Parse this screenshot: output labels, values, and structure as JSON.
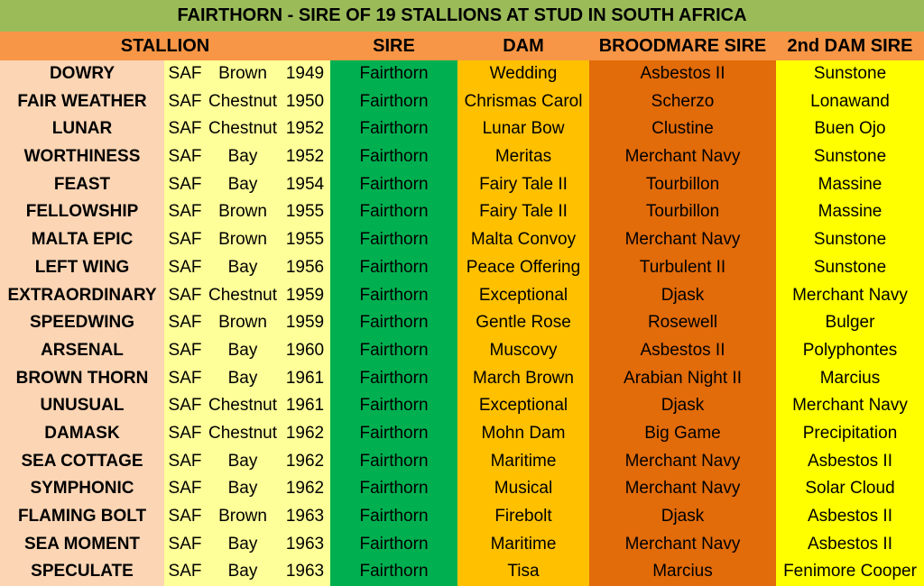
{
  "title": "FAIRTHORN - SIRE OF 19 STALLIONS AT STUD IN SOUTH AFRICA",
  "headers": {
    "stallion": "STALLION",
    "sire": "SIRE",
    "dam": "DAM",
    "broodmare_sire": "BROODMARE SIRE",
    "second_dam_sire": "2nd DAM SIRE"
  },
  "colors": {
    "title_bg": "#9bbb59",
    "header_bg": "#f79646",
    "stallion_bg": "#fcd5b4",
    "details_bg": "#ffff99",
    "sire_bg": "#00b050",
    "dam_bg": "#ffc000",
    "broodmare_sire_bg": "#e26b0a",
    "second_dam_sire_bg": "#ffff00"
  },
  "rows": [
    {
      "stallion": "DOWRY",
      "country": "SAF",
      "colour": "Brown",
      "year": "1949",
      "sire": "Fairthorn",
      "dam": "Wedding",
      "broodmare_sire": "Asbestos II",
      "second_dam_sire": "Sunstone"
    },
    {
      "stallion": "FAIR WEATHER",
      "country": "SAF",
      "colour": "Chestnut",
      "year": "1950",
      "sire": "Fairthorn",
      "dam": "Chrismas Carol",
      "broodmare_sire": "Scherzo",
      "second_dam_sire": "Lonawand"
    },
    {
      "stallion": "LUNAR",
      "country": "SAF",
      "colour": "Chestnut",
      "year": "1952",
      "sire": "Fairthorn",
      "dam": "Lunar Bow",
      "broodmare_sire": "Clustine",
      "second_dam_sire": "Buen Ojo"
    },
    {
      "stallion": "WORTHINESS",
      "country": "SAF",
      "colour": "Bay",
      "year": "1952",
      "sire": "Fairthorn",
      "dam": "Meritas",
      "broodmare_sire": "Merchant Navy",
      "second_dam_sire": "Sunstone"
    },
    {
      "stallion": "FEAST",
      "country": "SAF",
      "colour": "Bay",
      "year": "1954",
      "sire": "Fairthorn",
      "dam": "Fairy Tale II",
      "broodmare_sire": "Tourbillon",
      "second_dam_sire": "Massine"
    },
    {
      "stallion": "FELLOWSHIP",
      "country": "SAF",
      "colour": "Brown",
      "year": "1955",
      "sire": "Fairthorn",
      "dam": "Fairy Tale II",
      "broodmare_sire": "Tourbillon",
      "second_dam_sire": "Massine"
    },
    {
      "stallion": "MALTA EPIC",
      "country": "SAF",
      "colour": "Brown",
      "year": "1955",
      "sire": "Fairthorn",
      "dam": "Malta Convoy",
      "broodmare_sire": "Merchant Navy",
      "second_dam_sire": "Sunstone"
    },
    {
      "stallion": "LEFT WING",
      "country": "SAF",
      "colour": "Bay",
      "year": "1956",
      "sire": "Fairthorn",
      "dam": "Peace Offering",
      "broodmare_sire": "Turbulent II",
      "second_dam_sire": "Sunstone"
    },
    {
      "stallion": "EXTRAORDINARY",
      "country": "SAF",
      "colour": "Chestnut",
      "year": "1959",
      "sire": "Fairthorn",
      "dam": "Exceptional",
      "broodmare_sire": "Djask",
      "second_dam_sire": "Merchant Navy"
    },
    {
      "stallion": "SPEEDWING",
      "country": "SAF",
      "colour": "Brown",
      "year": "1959",
      "sire": "Fairthorn",
      "dam": "Gentle Rose",
      "broodmare_sire": "Rosewell",
      "second_dam_sire": "Bulger"
    },
    {
      "stallion": "ARSENAL",
      "country": "SAF",
      "colour": "Bay",
      "year": "1960",
      "sire": "Fairthorn",
      "dam": "Muscovy",
      "broodmare_sire": "Asbestos II",
      "second_dam_sire": "Polyphontes"
    },
    {
      "stallion": "BROWN THORN",
      "country": "SAF",
      "colour": "Bay",
      "year": "1961",
      "sire": "Fairthorn",
      "dam": "March Brown",
      "broodmare_sire": "Arabian Night II",
      "second_dam_sire": "Marcius"
    },
    {
      "stallion": "UNUSUAL",
      "country": "SAF",
      "colour": "Chestnut",
      "year": "1961",
      "sire": "Fairthorn",
      "dam": "Exceptional",
      "broodmare_sire": "Djask",
      "second_dam_sire": "Merchant Navy"
    },
    {
      "stallion": "DAMASK",
      "country": "SAF",
      "colour": "Chestnut",
      "year": "1962",
      "sire": "Fairthorn",
      "dam": "Mohn Dam",
      "broodmare_sire": "Big Game",
      "second_dam_sire": "Precipitation"
    },
    {
      "stallion": "SEA COTTAGE",
      "country": "SAF",
      "colour": "Bay",
      "year": "1962",
      "sire": "Fairthorn",
      "dam": "Maritime",
      "broodmare_sire": "Merchant Navy",
      "second_dam_sire": "Asbestos II"
    },
    {
      "stallion": "SYMPHONIC",
      "country": "SAF",
      "colour": "Bay",
      "year": "1962",
      "sire": "Fairthorn",
      "dam": "Musical",
      "broodmare_sire": "Merchant Navy",
      "second_dam_sire": "Solar Cloud"
    },
    {
      "stallion": "FLAMING BOLT",
      "country": "SAF",
      "colour": "Brown",
      "year": "1963",
      "sire": "Fairthorn",
      "dam": "Firebolt",
      "broodmare_sire": "Djask",
      "second_dam_sire": "Asbestos II"
    },
    {
      "stallion": "SEA MOMENT",
      "country": "SAF",
      "colour": "Bay",
      "year": "1963",
      "sire": "Fairthorn",
      "dam": "Maritime",
      "broodmare_sire": "Merchant Navy",
      "second_dam_sire": "Asbestos II"
    },
    {
      "stallion": "SPECULATE",
      "country": "SAF",
      "colour": "Bay",
      "year": "1963",
      "sire": "Fairthorn",
      "dam": "Tisa",
      "broodmare_sire": "Marcius",
      "second_dam_sire": "Fenimore Cooper"
    }
  ]
}
